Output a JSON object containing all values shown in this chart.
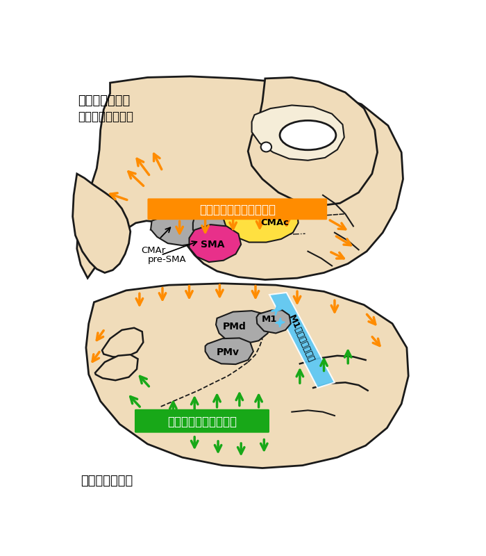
{
  "bg_color": "#FFFFFF",
  "skin_color": "#F0DCBA",
  "skin_edge": "#1a1a1a",
  "gray_region": "#AAAAAA",
  "yellow_region": "#FFE040",
  "magenta_region": "#E8308A",
  "orange_color": "#FF8C00",
  "green_color": "#18A818",
  "blue_color": "#5BC8F5",
  "top_label1": "大脳皮質内側面",
  "top_label2": "（上下逆に示す）",
  "bottom_label": "大脳皮質外側面",
  "orange_band_label": "帯状皮質グラデーション",
  "green_band_label": "島皮質グラデーション",
  "m1_label": "M1グラデーション",
  "label_CMAc": "CMAc",
  "label_CMAr": "CMAr",
  "label_preSMA": "pre-SMA",
  "label_SMA": "SMA",
  "label_PMd": "PMd",
  "label_PMv": "PMv",
  "label_M1": "M1"
}
